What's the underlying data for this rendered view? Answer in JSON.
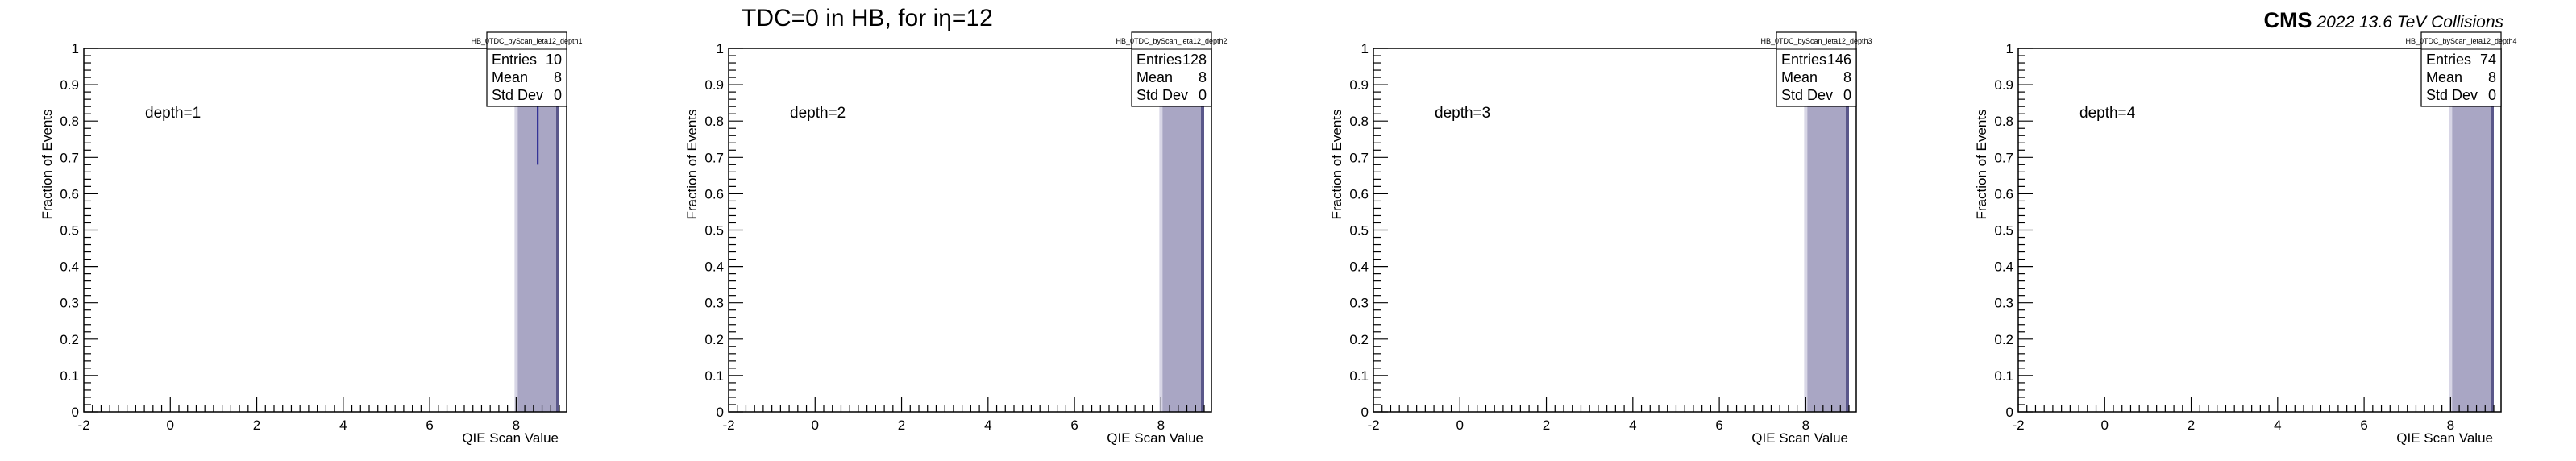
{
  "figure": {
    "title": "TDC=0 in HB, for iη=12",
    "experiment": "CMS",
    "lumi_text": "2022 13.6 TeV Collisions",
    "colors": {
      "fill": "#a9a6c4",
      "line": "#1a1a8c",
      "frame": "#000000"
    }
  },
  "chart_data": [
    {
      "type": "bar",
      "histogram_name": "HB_0TDC_byScan_ieta12_depth1",
      "annotation": "depth=1",
      "xlabel": "QIE Scan Value",
      "ylabel": "Fraction of Events",
      "xlim": [
        -2,
        9
      ],
      "ylim": [
        0,
        1
      ],
      "x_ticks": [
        "-2",
        "0",
        "2",
        "4",
        "6",
        "8"
      ],
      "y_ticks": [
        "0",
        "0.1",
        "0.2",
        "0.3",
        "0.4",
        "0.5",
        "0.6",
        "0.7",
        "0.8",
        "0.9",
        "1"
      ],
      "bins": [
        {
          "x_low": 8,
          "x_high": 9,
          "value": 1.0
        }
      ],
      "error_bar": {
        "x": 8.5,
        "y_low": 0.68,
        "y_high": 0.86
      },
      "stats": {
        "title": "HB_0TDC_byScan_ieta12_depth1",
        "entries_label": "Entries",
        "entries": "10",
        "mean_label": "Mean",
        "mean": "8",
        "std_label": "Std Dev",
        "std": "0"
      }
    },
    {
      "type": "bar",
      "histogram_name": "HB_0TDC_byScan_ieta12_depth2",
      "annotation": "depth=2",
      "xlabel": "QIE Scan Value",
      "ylabel": "Fraction of Events",
      "xlim": [
        -2,
        9
      ],
      "ylim": [
        0,
        1
      ],
      "x_ticks": [
        "-2",
        "0",
        "2",
        "4",
        "6",
        "8"
      ],
      "y_ticks": [
        "0",
        "0.1",
        "0.2",
        "0.3",
        "0.4",
        "0.5",
        "0.6",
        "0.7",
        "0.8",
        "0.9",
        "1"
      ],
      "bins": [
        {
          "x_low": 8,
          "x_high": 9,
          "value": 1.0
        }
      ],
      "stats": {
        "title": "HB_0TDC_byScan_ieta12_depth2",
        "entries_label": "Entries",
        "entries": "128",
        "mean_label": "Mean",
        "mean": "8",
        "std_label": "Std Dev",
        "std": "0"
      }
    },
    {
      "type": "bar",
      "histogram_name": "HB_0TDC_byScan_ieta12_depth3",
      "annotation": "depth=3",
      "xlabel": "QIE Scan Value",
      "ylabel": "Fraction of Events",
      "xlim": [
        -2,
        9
      ],
      "ylim": [
        0,
        1
      ],
      "x_ticks": [
        "-2",
        "0",
        "2",
        "4",
        "6",
        "8"
      ],
      "y_ticks": [
        "0",
        "0.1",
        "0.2",
        "0.3",
        "0.4",
        "0.5",
        "0.6",
        "0.7",
        "0.8",
        "0.9",
        "1"
      ],
      "bins": [
        {
          "x_low": 8,
          "x_high": 9,
          "value": 1.0
        }
      ],
      "stats": {
        "title": "HB_0TDC_byScan_ieta12_depth3",
        "entries_label": "Entries",
        "entries": "146",
        "mean_label": "Mean",
        "mean": "8",
        "std_label": "Std Dev",
        "std": "0"
      }
    },
    {
      "type": "bar",
      "histogram_name": "HB_0TDC_byScan_ieta12_depth4",
      "annotation": "depth=4",
      "xlabel": "QIE Scan Value",
      "ylabel": "Fraction of Events",
      "xlim": [
        -2,
        9
      ],
      "ylim": [
        0,
        1
      ],
      "x_ticks": [
        "-2",
        "0",
        "2",
        "4",
        "6",
        "8"
      ],
      "y_ticks": [
        "0",
        "0.1",
        "0.2",
        "0.3",
        "0.4",
        "0.5",
        "0.6",
        "0.7",
        "0.8",
        "0.9",
        "1"
      ],
      "bins": [
        {
          "x_low": 8,
          "x_high": 9,
          "value": 1.0
        }
      ],
      "stats": {
        "title": "HB_0TDC_byScan_ieta12_depth4",
        "entries_label": "Entries",
        "entries": "74",
        "mean_label": "Mean",
        "mean": "8",
        "std_label": "Std Dev",
        "std": "0"
      }
    }
  ]
}
